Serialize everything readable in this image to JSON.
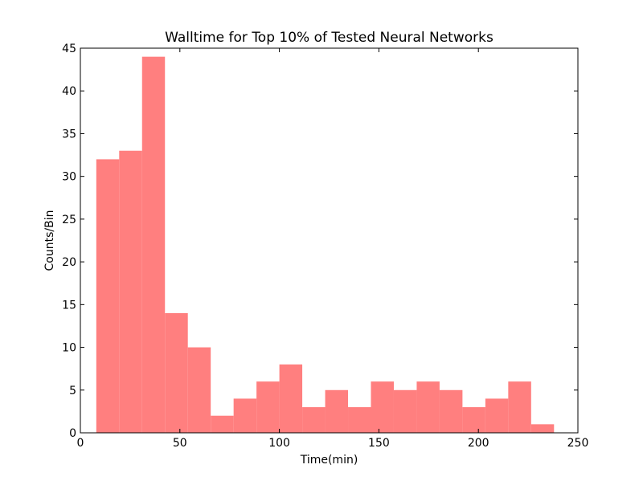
{
  "chart_data": {
    "type": "bar",
    "subtype": "histogram",
    "title": "Walltime for Top 10% of Tested Neural Networks",
    "xlabel": "Time(min)",
    "ylabel": "Counts/Bin",
    "xlim": [
      0,
      250
    ],
    "ylim": [
      0,
      45
    ],
    "xticks": [
      0,
      50,
      100,
      150,
      200,
      250
    ],
    "yticks": [
      0,
      5,
      10,
      15,
      20,
      25,
      30,
      35,
      40,
      45
    ],
    "bin_edges": [
      8,
      19.5,
      31,
      42.5,
      54,
      65.5,
      77,
      88.5,
      100,
      111.5,
      123,
      134.5,
      146,
      157.5,
      169,
      180.5,
      192,
      203.5,
      215,
      226.5,
      238
    ],
    "values": [
      32,
      33,
      44,
      14,
      10,
      2,
      4,
      6,
      8,
      3,
      5,
      3,
      6,
      5,
      6,
      5,
      3,
      4,
      6,
      1
    ],
    "bar_color": "#ff7f7f",
    "grid": false,
    "legend": "none"
  }
}
